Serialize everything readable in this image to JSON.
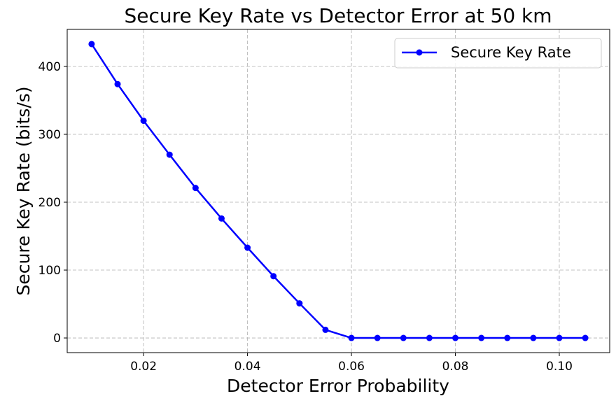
{
  "chart_data": {
    "type": "line",
    "title": "Secure Key Rate vs Detector Error at 50 km",
    "xlabel": "Detector Error Probability",
    "ylabel": "Secure Key Rate (bits/s)",
    "x": [
      0.01,
      0.015,
      0.02,
      0.025,
      0.03,
      0.035,
      0.04,
      0.045,
      0.05,
      0.055,
      0.06,
      0.065,
      0.07,
      0.075,
      0.08,
      0.085,
      0.09,
      0.095,
      0.1,
      0.105
    ],
    "series": [
      {
        "name": "Secure Key Rate",
        "color": "#0000ff",
        "marker": "circle",
        "values": [
          433,
          374,
          320,
          270,
          221,
          176,
          133,
          91,
          51,
          12,
          0,
          0,
          0,
          0,
          0,
          0,
          0,
          0,
          0,
          0
        ]
      }
    ],
    "xlim": [
      0.0053,
      0.1097
    ],
    "ylim": [
      -21.6,
      454.6
    ],
    "xticks": [
      0.02,
      0.04,
      0.06,
      0.08,
      0.1
    ],
    "xtick_labels": [
      "0.02",
      "0.04",
      "0.06",
      "0.08",
      "0.10"
    ],
    "yticks": [
      0,
      100,
      200,
      300,
      400
    ],
    "ytick_labels": [
      "0",
      "100",
      "200",
      "300",
      "400"
    ],
    "grid": true,
    "legend_position": "top-right"
  }
}
